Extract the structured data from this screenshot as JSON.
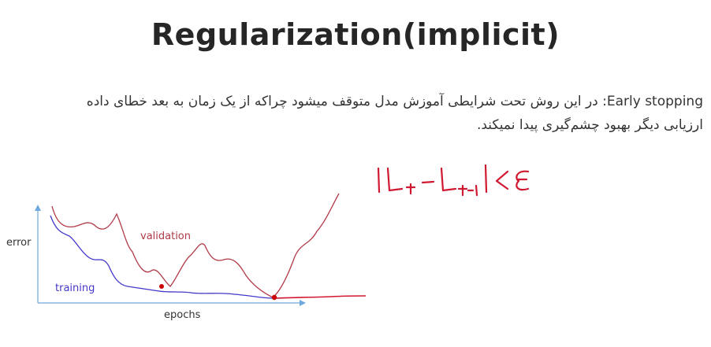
{
  "slide": {
    "title": "Regularization(implicit)",
    "body": {
      "term": "Early stopping",
      "text": ": در این روش تحت شرایطی آموزش مدل متوقف میشود چراکه از یک زمان به بعد خطای داده ارزیابی دیگر بهبود چشم‌گیری پیدا نمیکند."
    }
  },
  "figure": {
    "y_axis_label": "error",
    "x_axis_label": "epochs",
    "validation_label": "validation",
    "training_label": "training",
    "colors": {
      "validation": "#b03a48",
      "training": "#4338c8",
      "axis": "#6fa8dc",
      "stop_marker": "#cc0000",
      "handwriting": "#d01830"
    }
  },
  "annotation": {
    "handwritten_formula": "|Lt - Lt-1| < ε"
  }
}
